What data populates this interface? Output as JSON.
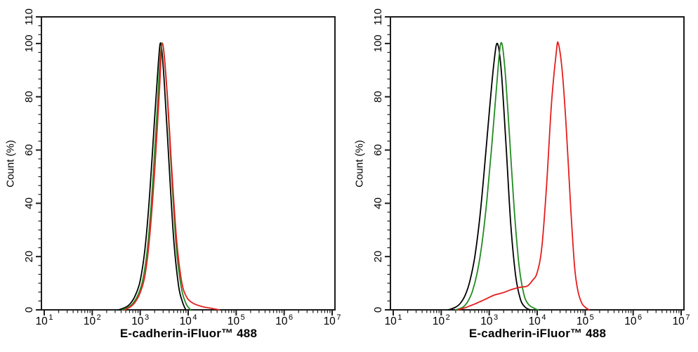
{
  "figure": {
    "background": "#ffffff",
    "axis_color": "#1c1c1c",
    "text_color": "#000000"
  },
  "chart_data": [
    {
      "type": "line",
      "panel": "left",
      "xlabel": "E-cadherin-iFluor™ 488",
      "ylabel": "Count  (%)",
      "xscale": "log10",
      "xlim_log10": [
        1,
        7
      ],
      "ylim": [
        0,
        110
      ],
      "xtick_exponents": [
        1,
        2,
        3,
        4,
        5,
        6,
        7
      ],
      "yticks": [
        0,
        20,
        40,
        60,
        80,
        100,
        110
      ],
      "y_minor_step": 3.3333,
      "grid": "off",
      "legend": "none",
      "series": [
        {
          "name": "black-curve",
          "color": "#000000",
          "points": [
            [
              2.55,
              0
            ],
            [
              2.7,
              1
            ],
            [
              2.8,
              2.5
            ],
            [
              2.9,
              5.5
            ],
            [
              3.0,
              11
            ],
            [
              3.1,
              23
            ],
            [
              3.2,
              44
            ],
            [
              3.3,
              72
            ],
            [
              3.38,
              93
            ],
            [
              3.43,
              100
            ],
            [
              3.5,
              86
            ],
            [
              3.6,
              55
            ],
            [
              3.7,
              26
            ],
            [
              3.8,
              9
            ],
            [
              3.88,
              3
            ],
            [
              3.95,
              0
            ]
          ]
        },
        {
          "name": "green-curve",
          "color": "#228B22",
          "points": [
            [
              2.62,
              0
            ],
            [
              2.75,
              1
            ],
            [
              2.85,
              2.5
            ],
            [
              2.95,
              5.5
            ],
            [
              3.05,
              11
            ],
            [
              3.15,
              23
            ],
            [
              3.25,
              45
            ],
            [
              3.35,
              74
            ],
            [
              3.45,
              100
            ],
            [
              3.55,
              84
            ],
            [
              3.65,
              52
            ],
            [
              3.75,
              24
            ],
            [
              3.85,
              9
            ],
            [
              3.95,
              2.5
            ],
            [
              4.05,
              0
            ]
          ]
        },
        {
          "name": "red-curve",
          "color": "#e41e1e",
          "points": [
            [
              2.68,
              0
            ],
            [
              2.8,
              1.2
            ],
            [
              2.9,
              3
            ],
            [
              3.0,
              6.5
            ],
            [
              3.1,
              13
            ],
            [
              3.2,
              28
            ],
            [
              3.3,
              52
            ],
            [
              3.4,
              82
            ],
            [
              3.46,
              100
            ],
            [
              3.56,
              82
            ],
            [
              3.66,
              52
            ],
            [
              3.76,
              26
            ],
            [
              3.86,
              11
            ],
            [
              3.96,
              5
            ],
            [
              4.1,
              2.5
            ],
            [
              4.3,
              1.2
            ],
            [
              4.5,
              0.5
            ],
            [
              4.65,
              0
            ]
          ]
        }
      ]
    },
    {
      "type": "line",
      "panel": "right",
      "xlabel": "E-cadherin-iFluor™ 488",
      "ylabel": "Count  (%)",
      "xscale": "log10",
      "xlim_log10": [
        1,
        7
      ],
      "ylim": [
        0,
        110
      ],
      "xtick_exponents": [
        1,
        2,
        3,
        4,
        5,
        6,
        7
      ],
      "yticks": [
        0,
        20,
        40,
        60,
        80,
        100,
        110
      ],
      "y_minor_step": 3.3333,
      "grid": "off",
      "legend": "none",
      "series": [
        {
          "name": "black-curve",
          "color": "#000000",
          "points": [
            [
              2.15,
              0
            ],
            [
              2.3,
              1
            ],
            [
              2.4,
              2.5
            ],
            [
              2.5,
              5.5
            ],
            [
              2.6,
              11
            ],
            [
              2.7,
              20
            ],
            [
              2.8,
              34
            ],
            [
              2.9,
              53
            ],
            [
              3.0,
              74
            ],
            [
              3.1,
              93
            ],
            [
              3.17,
              100
            ],
            [
              3.25,
              90
            ],
            [
              3.35,
              62
            ],
            [
              3.45,
              32
            ],
            [
              3.55,
              13
            ],
            [
              3.65,
              4
            ],
            [
              3.75,
              1
            ],
            [
              3.85,
              0
            ]
          ]
        },
        {
          "name": "green-curve",
          "color": "#228B22",
          "points": [
            [
              2.3,
              0
            ],
            [
              2.45,
              1
            ],
            [
              2.55,
              3
            ],
            [
              2.65,
              7
            ],
            [
              2.75,
              14
            ],
            [
              2.85,
              25
            ],
            [
              2.95,
              41
            ],
            [
              3.05,
              61
            ],
            [
              3.15,
              83
            ],
            [
              3.24,
              100
            ],
            [
              3.32,
              92
            ],
            [
              3.42,
              66
            ],
            [
              3.52,
              38
            ],
            [
              3.62,
              17
            ],
            [
              3.72,
              6
            ],
            [
              3.82,
              2
            ],
            [
              3.95,
              0.5
            ],
            [
              4.02,
              0
            ]
          ]
        },
        {
          "name": "red-curve",
          "color": "#e41e1e",
          "points": [
            [
              2.35,
              0
            ],
            [
              2.5,
              0.8
            ],
            [
              2.6,
              1.5
            ],
            [
              2.7,
              2.2
            ],
            [
              2.8,
              3
            ],
            [
              2.9,
              3.8
            ],
            [
              3.0,
              4.7
            ],
            [
              3.1,
              5.5
            ],
            [
              3.2,
              6
            ],
            [
              3.3,
              6.5
            ],
            [
              3.4,
              7.2
            ],
            [
              3.5,
              7.8
            ],
            [
              3.6,
              8.3
            ],
            [
              3.7,
              8.6
            ],
            [
              3.8,
              9
            ],
            [
              3.9,
              11
            ],
            [
              4.0,
              14
            ],
            [
              4.1,
              24
            ],
            [
              4.2,
              48
            ],
            [
              4.3,
              78
            ],
            [
              4.4,
              97
            ],
            [
              4.44,
              100
            ],
            [
              4.52,
              90
            ],
            [
              4.6,
              70
            ],
            [
              4.7,
              38
            ],
            [
              4.78,
              16
            ],
            [
              4.85,
              7
            ],
            [
              4.93,
              2.5
            ],
            [
              5.0,
              1
            ],
            [
              5.08,
              0
            ]
          ]
        }
      ]
    }
  ]
}
